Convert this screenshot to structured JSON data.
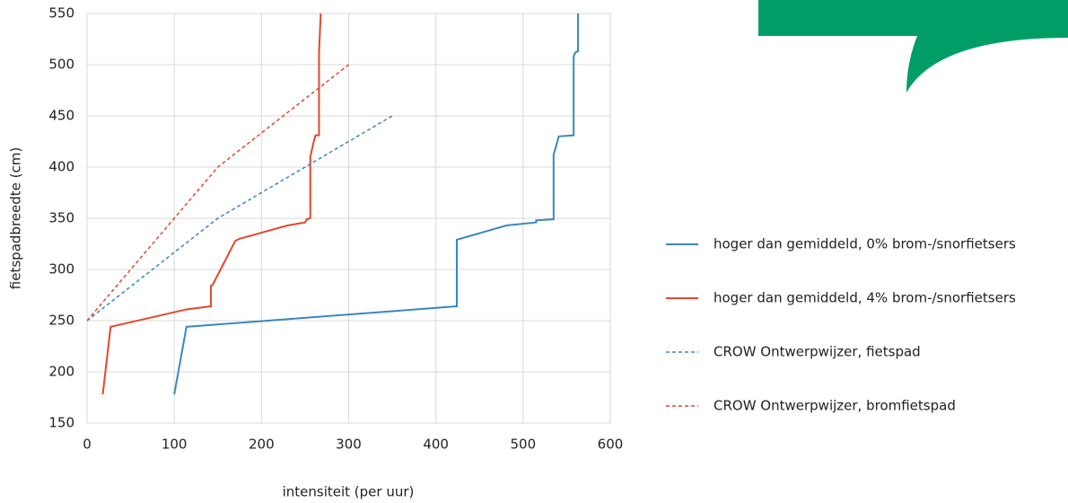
{
  "chart_data": {
    "type": "line",
    "x_label": "intensiteit (per uur)",
    "y_label": "fietspadbreedte (cm)",
    "xlim": [
      0,
      600
    ],
    "xticks": [
      0,
      100,
      200,
      300,
      400,
      500,
      600
    ],
    "ylim": [
      150,
      550
    ],
    "yticks": [
      150,
      200,
      250,
      300,
      350,
      400,
      450,
      500,
      550
    ],
    "grid": true,
    "legend": "right",
    "series": [
      {
        "name": "hoger dan gemiddeld, 0% brom-/snorfietsers",
        "color": "#3a87c0",
        "dashed": false,
        "x": [
          100,
          114,
          424,
          424,
          481,
          515,
          515,
          535,
          535,
          541,
          558,
          558,
          560,
          563,
          563
        ],
        "values": [
          178,
          244,
          264,
          329,
          343,
          346,
          348,
          349,
          412,
          430,
          431,
          508,
          512,
          513,
          550
        ]
      },
      {
        "name": "hoger dan gemiddeld, 4% brom-/snorfietsers",
        "color": "#e3472a",
        "dashed": false,
        "x": [
          18,
          27,
          114,
          142,
          142,
          144,
          170,
          175,
          230,
          250,
          252,
          256,
          256,
          260,
          262,
          266,
          266,
          268
        ],
        "values": [
          178,
          244,
          261,
          264,
          284,
          285,
          328,
          330,
          343,
          346,
          349,
          350,
          410,
          425,
          431,
          431,
          512,
          550
        ]
      },
      {
        "name": "CROW Ontwerpwijzer, fietspad",
        "color": "#3a87c0",
        "dashed": true,
        "x": [
          0,
          150,
          350
        ],
        "values": [
          250,
          350,
          450
        ]
      },
      {
        "name": "CROW Ontwerpwijzer, bromfietspad",
        "color": "#e3472a",
        "dashed": true,
        "x": [
          0,
          150,
          300
        ],
        "values": [
          250,
          400,
          500
        ]
      }
    ]
  }
}
